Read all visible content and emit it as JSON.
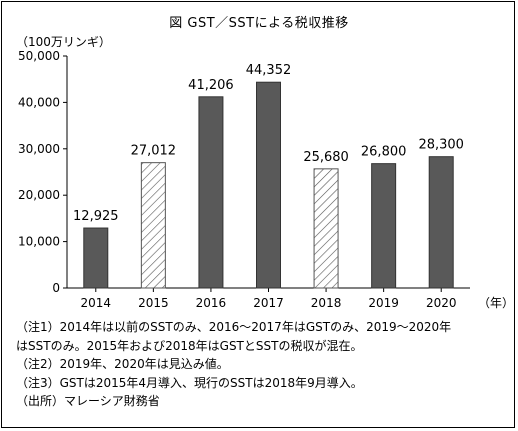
{
  "chart_data": {
    "type": "bar",
    "title": "図 GST／SSTによる税収推移",
    "unit_label": "（100万リンギ）",
    "x_unit": "（年）",
    "categories": [
      "2014",
      "2015",
      "2016",
      "2017",
      "2018",
      "2019",
      "2020"
    ],
    "values": [
      12925,
      27012,
      41206,
      44352,
      25680,
      26800,
      28300
    ],
    "value_labels": [
      "12,925",
      "27,012",
      "41,206",
      "44,352",
      "25,680",
      "26,800",
      "28,300"
    ],
    "bar_styles": [
      "solid",
      "hatched",
      "solid",
      "solid",
      "hatched",
      "solid",
      "solid"
    ],
    "ylim": [
      0,
      50000
    ],
    "yticks": [
      0,
      10000,
      20000,
      30000,
      40000,
      50000
    ],
    "ytick_labels": [
      "0",
      "10,000",
      "20,000",
      "30,000",
      "40,000",
      "50,000"
    ],
    "grid": false,
    "colors": {
      "solid_fill": "#595959",
      "hatch_stroke": "#555555",
      "axis": "#000000"
    }
  },
  "notes": [
    "（注1）2014年は以前のSSTのみ、2016～2017年はGSTのみ、2019～2020年",
    "はSSTのみ。2015年および2018年はGSTとSSTの税収が混在。",
    "（注2）2019年、2020年は見込み値。",
    "（注3）GSTは2015年4月導入、現行のSSTは2018年9月導入。",
    "（出所）マレーシア財務省"
  ]
}
